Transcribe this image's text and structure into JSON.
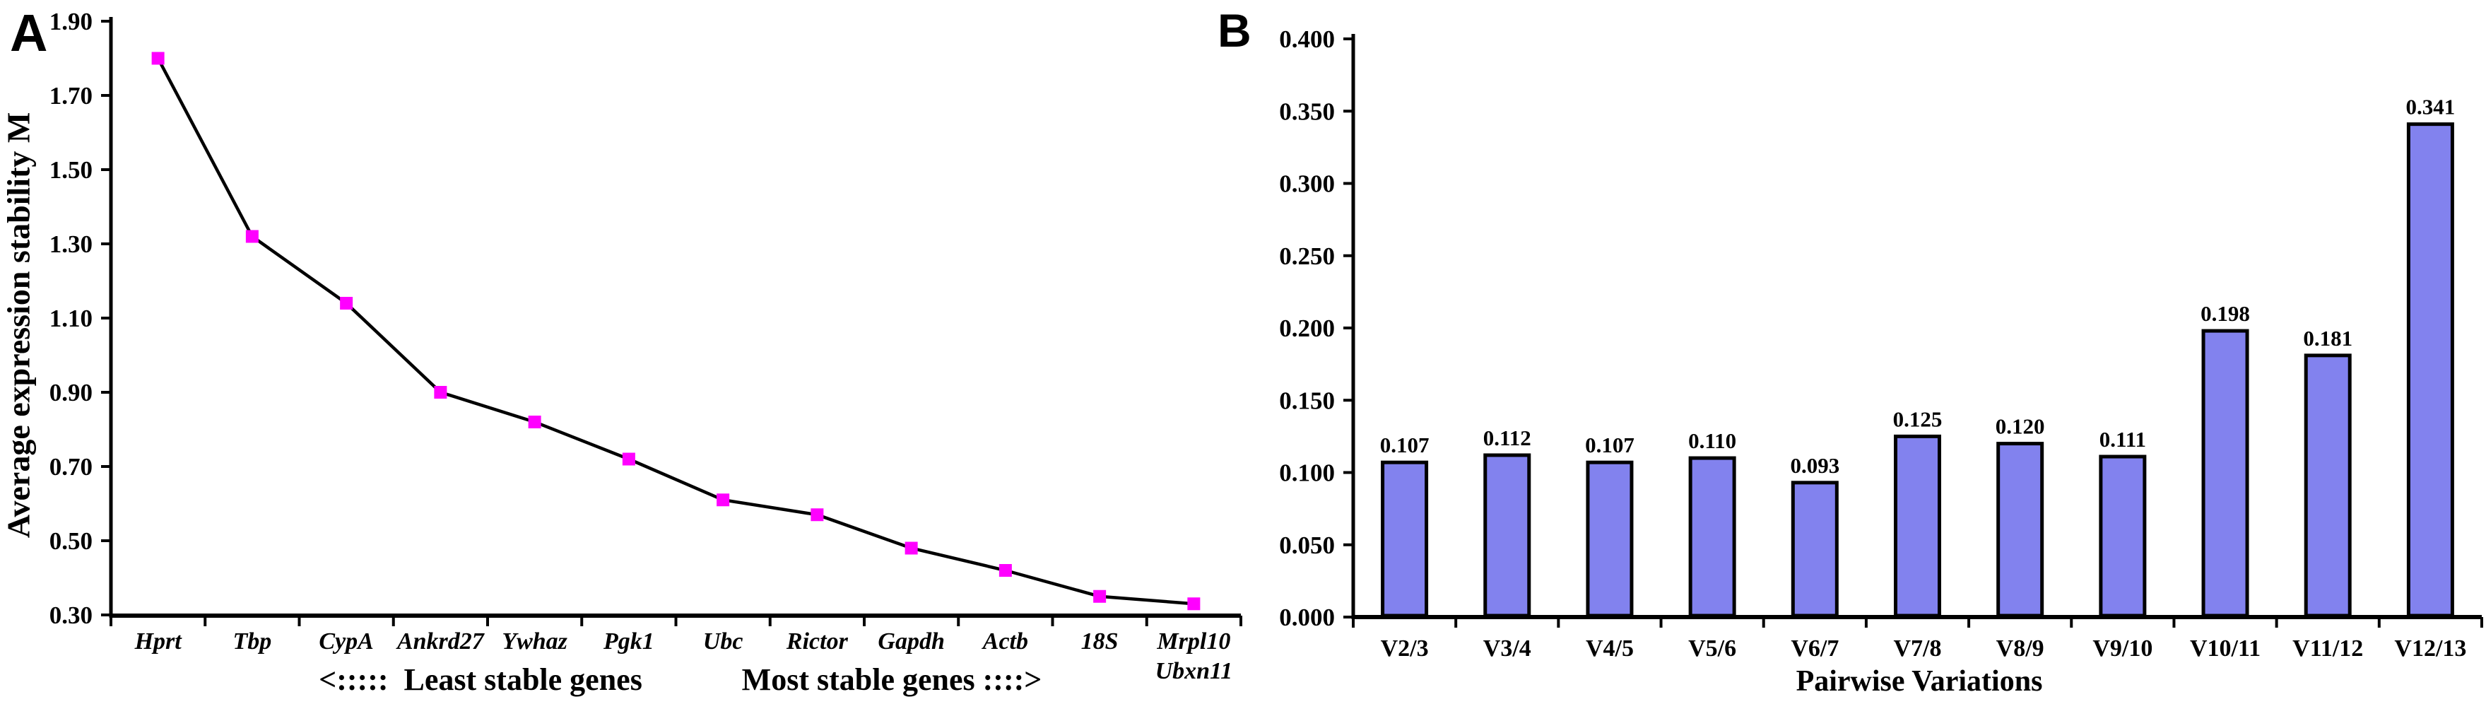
{
  "panelA": {
    "letter": "A",
    "y_axis_title": "Average expression stability M",
    "annotation_left": "<:::::  Least stable genes",
    "annotation_right": "Most stable genes ::::>"
  },
  "panelB": {
    "letter": "B",
    "x_axis_title": "Pairwise Variations"
  },
  "chart_data": [
    {
      "panel": "A",
      "type": "line",
      "title": "",
      "xlabel": "",
      "ylabel": "Average expression stability M",
      "categories": [
        "Hprt",
        "Tbp",
        "CypA",
        "Ankrd27",
        "Ywhaz",
        "Pgk1",
        "Ubc",
        "Rictor",
        "Gapdh",
        "Actb",
        "18S",
        "Mrpl10\nUbxn11"
      ],
      "values": [
        1.8,
        1.32,
        1.14,
        0.9,
        0.82,
        0.72,
        0.61,
        0.57,
        0.48,
        0.42,
        0.35,
        0.33
      ],
      "ylim": [
        0.3,
        1.9
      ],
      "ytick_step": 0.2,
      "ytick_decimals": 2,
      "grid": false,
      "legend_position": "none",
      "line_color": "#000000",
      "marker_shape": "square",
      "marker_color": "#ff00ff",
      "annotations": [
        "<:::::  Least stable genes",
        "Most stable genes ::::>"
      ]
    },
    {
      "panel": "B",
      "type": "bar",
      "title": "",
      "xlabel": "Pairwise Variations",
      "ylabel": "",
      "categories": [
        "V2/3",
        "V3/4",
        "V4/5",
        "V5/6",
        "V6/7",
        "V7/8",
        "V8/9",
        "V9/10",
        "V10/11",
        "V11/12",
        "V12/13"
      ],
      "values": [
        0.107,
        0.112,
        0.107,
        0.11,
        0.093,
        0.125,
        0.12,
        0.111,
        0.198,
        0.181,
        0.341
      ],
      "value_labels": [
        "0.107",
        "0.112",
        "0.107",
        "0.110",
        "0.093",
        "0.125",
        "0.120",
        "0.111",
        "0.198",
        "0.181",
        "0.341"
      ],
      "ylim": [
        0.0,
        0.4
      ],
      "ytick_step": 0.05,
      "ytick_decimals": 3,
      "grid": false,
      "legend_position": "none",
      "bar_color": "#8282ee",
      "bar_border_color": "#000000"
    }
  ]
}
